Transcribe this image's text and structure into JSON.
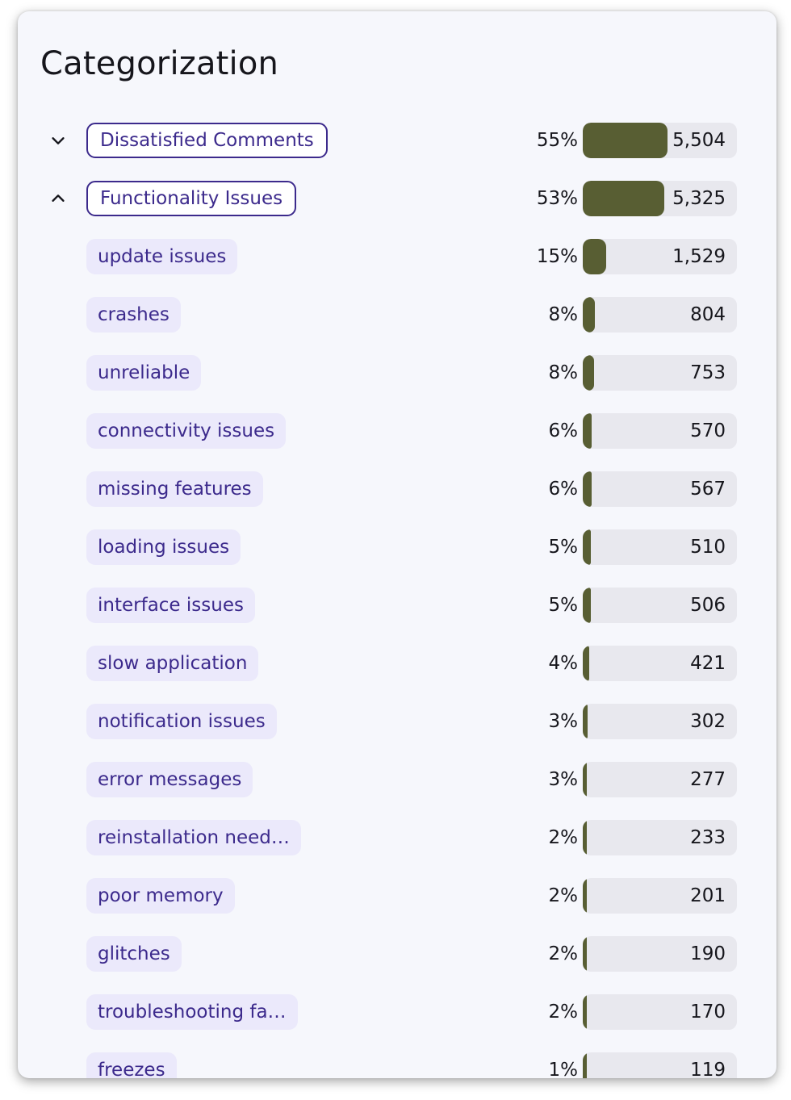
{
  "title": "Categorization",
  "colors": {
    "bar_fill": "#585e33",
    "bar_track": "#e8e8ee",
    "pill_text": "#3c2a8c",
    "pill_bg": "#ebe9fb"
  },
  "rows": [
    {
      "label": "Dissatisfied Comments",
      "pct": "55%",
      "fraction": 0.55,
      "count": "5,504",
      "level": "top",
      "chevron": "chevron-down-icon"
    },
    {
      "label": "Functionality Issues",
      "pct": "53%",
      "fraction": 0.53,
      "count": "5,325",
      "level": "top",
      "chevron": "chevron-up-icon"
    },
    {
      "label": "update issues",
      "pct": "15%",
      "fraction": 0.15,
      "count": "1,529",
      "level": "sub"
    },
    {
      "label": "crashes",
      "pct": "8%",
      "fraction": 0.08,
      "count": "804",
      "level": "sub"
    },
    {
      "label": "unreliable",
      "pct": "8%",
      "fraction": 0.075,
      "count": "753",
      "level": "sub"
    },
    {
      "label": "connectivity issues",
      "pct": "6%",
      "fraction": 0.057,
      "count": "570",
      "level": "sub"
    },
    {
      "label": "missing features",
      "pct": "6%",
      "fraction": 0.057,
      "count": "567",
      "level": "sub"
    },
    {
      "label": "loading issues",
      "pct": "5%",
      "fraction": 0.051,
      "count": "510",
      "level": "sub"
    },
    {
      "label": "interface issues",
      "pct": "5%",
      "fraction": 0.051,
      "count": "506",
      "level": "sub"
    },
    {
      "label": "slow application",
      "pct": "4%",
      "fraction": 0.042,
      "count": "421",
      "level": "sub"
    },
    {
      "label": "notification issues",
      "pct": "3%",
      "fraction": 0.03,
      "count": "302",
      "level": "sub"
    },
    {
      "label": "error messages",
      "pct": "3%",
      "fraction": 0.028,
      "count": "277",
      "level": "sub"
    },
    {
      "label": "reinstallation need…",
      "pct": "2%",
      "fraction": 0.023,
      "count": "233",
      "level": "sub"
    },
    {
      "label": "poor memory",
      "pct": "2%",
      "fraction": 0.02,
      "count": "201",
      "level": "sub"
    },
    {
      "label": "glitches",
      "pct": "2%",
      "fraction": 0.019,
      "count": "190",
      "level": "sub"
    },
    {
      "label": "troubleshooting fa…",
      "pct": "2%",
      "fraction": 0.017,
      "count": "170",
      "level": "sub"
    },
    {
      "label": "freezes",
      "pct": "1%",
      "fraction": 0.012,
      "count": "119",
      "level": "sub"
    }
  ]
}
